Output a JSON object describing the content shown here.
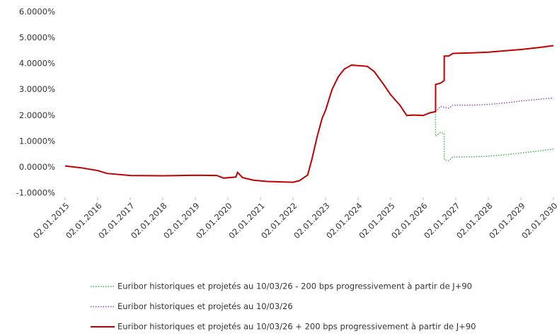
{
  "chart_data": {
    "type": "line",
    "yticks": [
      {
        "value": 6,
        "label": "6.0000%"
      },
      {
        "value": 5,
        "label": "5.0000%"
      },
      {
        "value": 4,
        "label": "4.0000%"
      },
      {
        "value": 3,
        "label": "3.0000%"
      },
      {
        "value": 2,
        "label": "2.0000%"
      },
      {
        "value": 1,
        "label": "1.0000%"
      },
      {
        "value": 0,
        "label": "0.0000%"
      },
      {
        "value": -1,
        "label": "-1.0000%"
      }
    ],
    "ylim": [
      -1,
      6
    ],
    "xlim": [
      "2015-01-02",
      "2030-01-02"
    ],
    "xticks": [
      {
        "value": "2015-01-02",
        "label": "02.01.2015"
      },
      {
        "value": "2016-01-02",
        "label": "02.01.2016"
      },
      {
        "value": "2017-01-02",
        "label": "02.01.2017"
      },
      {
        "value": "2018-01-02",
        "label": "02.01.2018"
      },
      {
        "value": "2019-01-02",
        "label": "02.01.2019"
      },
      {
        "value": "2020-01-02",
        "label": "02.01.2020"
      },
      {
        "value": "2021-01-02",
        "label": "02.01.2021"
      },
      {
        "value": "2022-01-02",
        "label": "02.01.2022"
      },
      {
        "value": "2023-01-02",
        "label": "02.01.2023"
      },
      {
        "value": "2024-01-02",
        "label": "02.01.2024"
      },
      {
        "value": "2025-01-02",
        "label": "02.01.2025"
      },
      {
        "value": "2026-01-02",
        "label": "02.01.2026"
      },
      {
        "value": "2027-01-02",
        "label": "02.01.2027"
      },
      {
        "value": "2028-01-02",
        "label": "02.01.2028"
      },
      {
        "value": "2029-01-02",
        "label": "02.01.2029"
      },
      {
        "value": "2030-01-02",
        "label": "02.01.2030"
      }
    ],
    "grid": false,
    "series": [
      {
        "name": "Euribor historiques et projetés au 10/03/26 - 200 bps progressivement à partir de J+90",
        "color": "#2fb34a",
        "dash": "dotted",
        "x": [
          "2026-05-20",
          "2026-05-21",
          "2026-07-15",
          "2026-08-25",
          "2026-08-26",
          "2026-10-15",
          "2026-12-01",
          "2027-07-01",
          "2028-01-03",
          "2028-07-01",
          "2029-01-02",
          "2029-07-01",
          "2030-01-02"
        ],
        "values": [
          2.15,
          1.2,
          1.35,
          1.3,
          0.3,
          0.25,
          0.4,
          0.4,
          0.43,
          0.48,
          0.55,
          0.62,
          0.7
        ]
      },
      {
        "name": "Euribor historiques et projetés au 10/03/26",
        "color": "#8e44c0",
        "dash": "dotted",
        "x": [
          "2026-05-20",
          "2026-07-15",
          "2026-10-15",
          "2026-12-01",
          "2027-07-01",
          "2028-01-03",
          "2028-07-01",
          "2029-01-02",
          "2029-07-01",
          "2030-01-02"
        ],
        "values": [
          2.15,
          2.35,
          2.28,
          2.4,
          2.4,
          2.43,
          2.48,
          2.56,
          2.62,
          2.68
        ]
      },
      {
        "name": "Euribor historiques et projetés au 10/03/26 + 200 bps progressivement à partir de J+90",
        "color": "#c00000",
        "dash": "solid",
        "x": [
          "2015-01-02",
          "2015-07-01",
          "2016-01-04",
          "2016-04-15",
          "2017-01-02",
          "2018-01-02",
          "2019-01-02",
          "2019-09-01",
          "2019-11-15",
          "2020-04-01",
          "2020-04-20",
          "2020-06-15",
          "2020-10-15",
          "2021-03-15",
          "2022-01-03",
          "2022-03-15",
          "2022-06-15",
          "2022-08-01",
          "2022-10-01",
          "2022-11-25",
          "2023-01-02",
          "2023-03-15",
          "2023-05-25",
          "2023-08-01",
          "2023-10-20",
          "2024-01-02",
          "2024-04-15",
          "2024-07-01",
          "2024-10-15",
          "2025-01-02",
          "2025-04-15",
          "2025-07-01",
          "2025-09-15",
          "2026-01-02",
          "2026-03-15",
          "2026-05-20",
          "2026-05-21",
          "2026-07-15",
          "2026-08-25",
          "2026-08-26",
          "2026-10-15",
          "2026-12-01",
          "2027-07-01",
          "2028-01-03",
          "2028-07-01",
          "2029-01-02",
          "2029-07-01",
          "2030-01-02"
        ],
        "values": [
          0.05,
          -0.02,
          -0.13,
          -0.24,
          -0.32,
          -0.33,
          -0.31,
          -0.32,
          -0.42,
          -0.38,
          -0.2,
          -0.4,
          -0.5,
          -0.55,
          -0.58,
          -0.52,
          -0.3,
          0.3,
          1.2,
          1.9,
          2.2,
          3.0,
          3.5,
          3.8,
          3.95,
          3.93,
          3.9,
          3.7,
          3.2,
          2.8,
          2.4,
          2.0,
          2.02,
          2.0,
          2.1,
          2.15,
          3.2,
          3.25,
          3.35,
          4.3,
          4.3,
          4.4,
          4.42,
          4.45,
          4.5,
          4.55,
          4.62,
          4.7
        ]
      }
    ]
  }
}
